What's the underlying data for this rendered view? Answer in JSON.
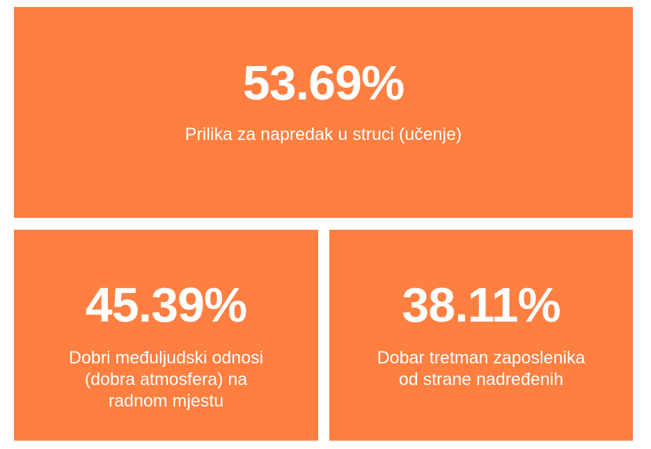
{
  "colors": {
    "tile_background": "#ff7f41",
    "text": "#ffffff",
    "page_background": "#ffffff"
  },
  "stats": [
    {
      "value": "53.69%",
      "label": "Prilika za napredak u struci (učenje)"
    },
    {
      "value": "45.39%",
      "label": "Dobri međuljudski odnosi\n(dobra atmosfera) na\nradnom mjestu"
    },
    {
      "value": "38.11%",
      "label": "Dobar tretman zaposlenika\nod strane nadređenih"
    }
  ]
}
